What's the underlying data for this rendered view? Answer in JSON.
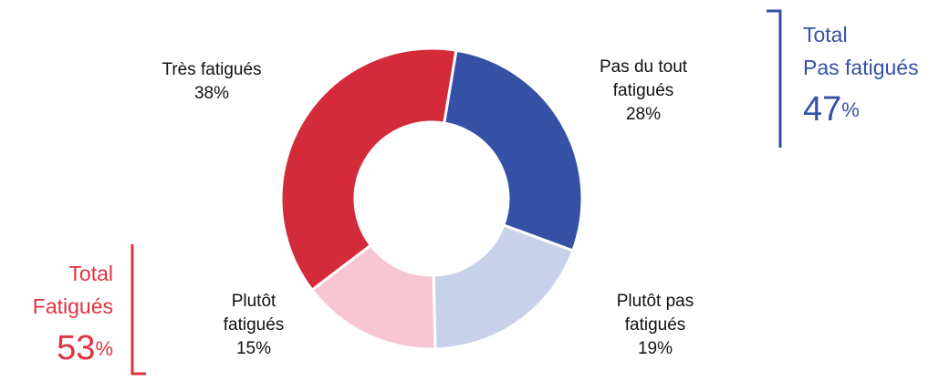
{
  "chart_data": {
    "type": "donut",
    "categories": [
      "Pas du tout fatigués",
      "Plutôt pas fatigués",
      "Plutôt fatigués",
      "Très fatigués"
    ],
    "values": [
      28,
      19,
      15,
      38
    ],
    "value_labels": [
      "28%",
      "19%",
      "15%",
      "38%"
    ],
    "colors": [
      "#3451a6",
      "#c8d1ea",
      "#f7c6d2",
      "#d42b3b"
    ],
    "totals": [
      {
        "title": [
          "Total",
          "Pas fatigués"
        ],
        "value": 47,
        "unit": "%",
        "color": "#3451a6"
      },
      {
        "title": [
          "Total",
          "Fatigués"
        ],
        "value": 53,
        "unit": "%",
        "color": "#e0323f"
      }
    ]
  }
}
